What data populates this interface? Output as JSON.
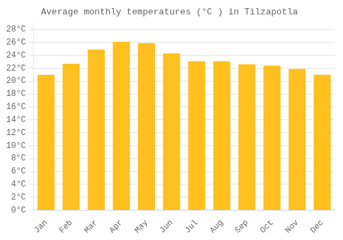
{
  "chart_data": {
    "type": "bar",
    "title": "Average monthly temperatures (°C ) in Tilzapotla",
    "categories": [
      "Jan",
      "Feb",
      "Mar",
      "Apr",
      "May",
      "Jun",
      "Jul",
      "Aug",
      "Sep",
      "Oct",
      "Nov",
      "Dec"
    ],
    "values": [
      21.0,
      22.7,
      24.9,
      26.1,
      25.9,
      24.3,
      23.1,
      23.1,
      22.6,
      22.4,
      21.9,
      21.0
    ],
    "color": "#FFC020",
    "ylim": [
      0,
      29
    ],
    "yticks": [
      {
        "value": 0,
        "label": "0°C"
      },
      {
        "value": 2,
        "label": "2°C"
      },
      {
        "value": 4,
        "label": "4°C"
      },
      {
        "value": 6,
        "label": "6°C"
      },
      {
        "value": 8,
        "label": "8°C"
      },
      {
        "value": 10,
        "label": "10°C"
      },
      {
        "value": 12,
        "label": "12°C"
      },
      {
        "value": 14,
        "label": "14°C"
      },
      {
        "value": 16,
        "label": "16°C"
      },
      {
        "value": 18,
        "label": "18°C"
      },
      {
        "value": 20,
        "label": "20°C"
      },
      {
        "value": 22,
        "label": "22°C"
      },
      {
        "value": 24,
        "label": "24°C"
      },
      {
        "value": 26,
        "label": "26°C"
      },
      {
        "value": 28,
        "label": "28°C"
      }
    ],
    "grid": true
  }
}
